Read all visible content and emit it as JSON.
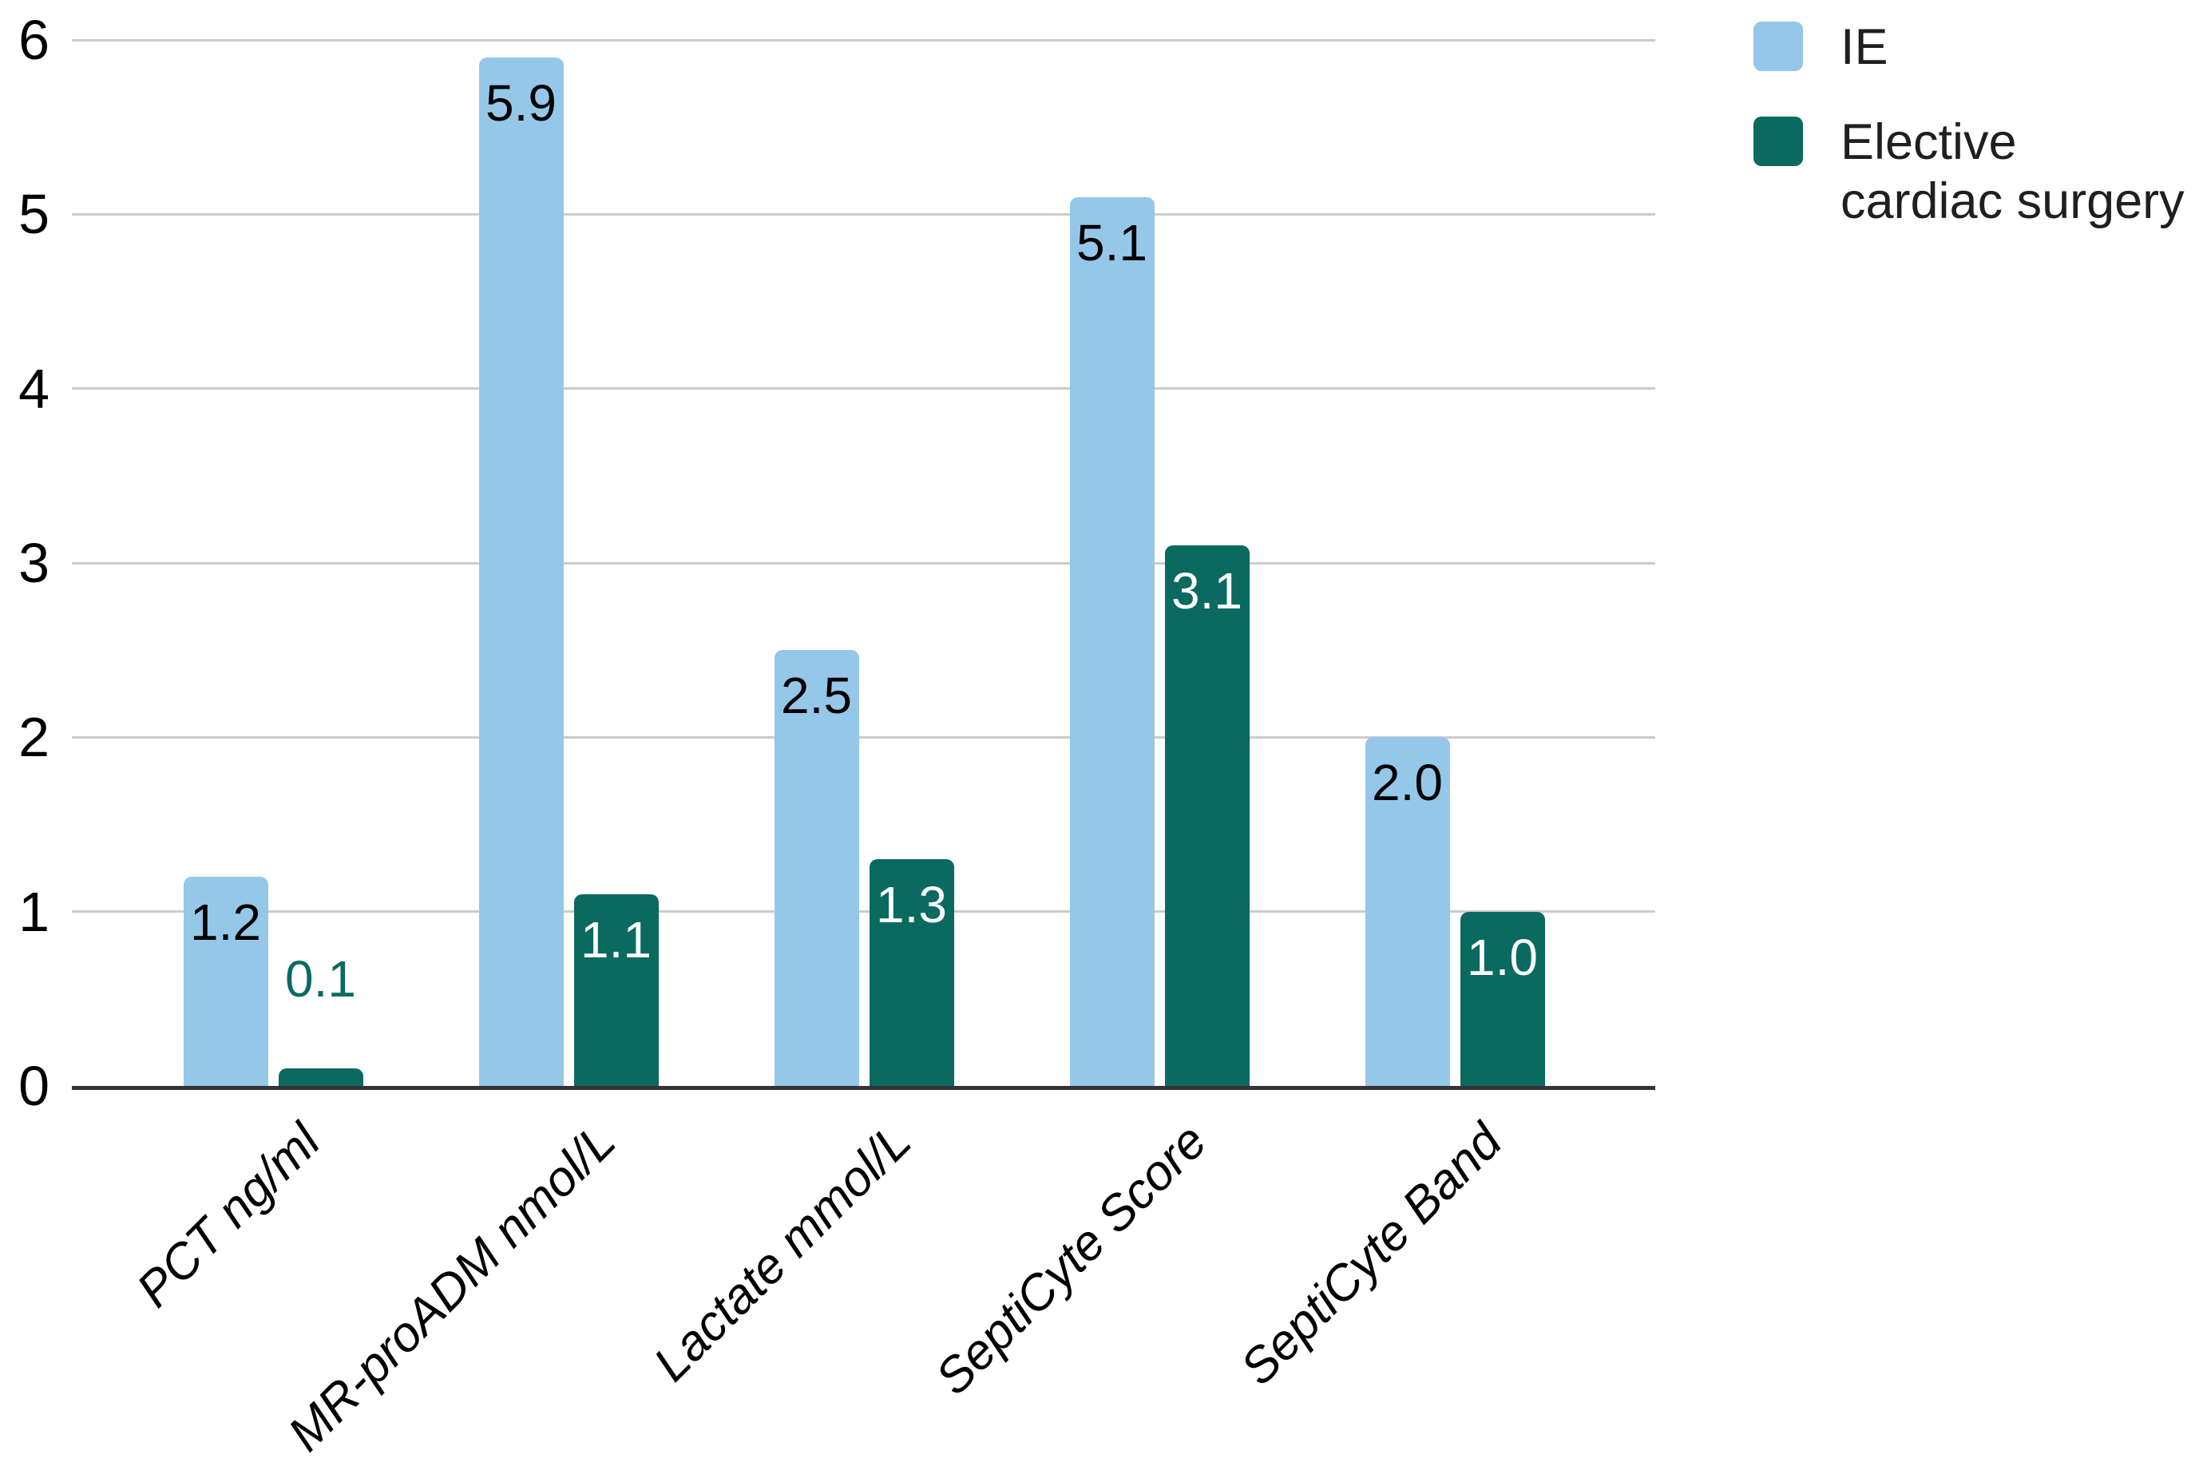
{
  "chart_data": {
    "type": "bar",
    "title": "",
    "xlabel": "",
    "ylabel": "",
    "categories": [
      "PCT ng/ml",
      "MR-proADM nmol/L",
      "Lactate mmol/L",
      "SeptiCyte Score",
      "SeptiCyte Band"
    ],
    "series": [
      {
        "name": "IE",
        "color": "#95c7e9",
        "label_color": "#000000",
        "values": [
          1.2,
          5.9,
          2.5,
          5.1,
          2.0
        ],
        "labels": [
          "1.2",
          "5.9",
          "2.5",
          "5.1",
          "2.0"
        ]
      },
      {
        "name": "Elective cardiac surgery",
        "color": "#0a6a60",
        "label_color": "#ffffff",
        "values": [
          0.1,
          1.1,
          1.3,
          3.1,
          1.0
        ],
        "labels": [
          "0.1",
          "1.1",
          "1.3",
          "3.1",
          "1.0"
        ]
      }
    ],
    "ylim": [
      0,
      6
    ],
    "yticks": [
      0,
      1,
      2,
      3,
      4,
      5,
      6
    ],
    "grid": true,
    "legend_position": "top-right",
    "bar_label_placement": "inside bar top; placed above bar in series color when bar is too short",
    "gridline_color": "#cccccc",
    "axis_color": "#333333"
  },
  "legend": {
    "items": [
      {
        "label": "IE"
      },
      {
        "label": "Elective cardiac surgery"
      }
    ]
  }
}
